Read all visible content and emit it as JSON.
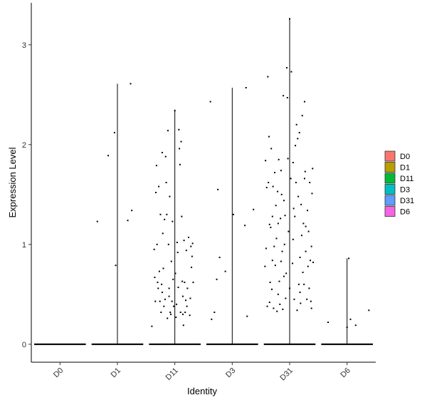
{
  "chart_data": {
    "type": "violin-jitter",
    "title": "",
    "xlabel": "Identity",
    "ylabel": "Expression Level",
    "ylim": [
      -0.18,
      3.42
    ],
    "yticks": [
      0,
      1,
      2,
      3
    ],
    "categories": [
      "D0",
      "D1",
      "D11",
      "D3",
      "D31",
      "D6"
    ],
    "legend": {
      "position": "right",
      "entries": [
        {
          "label": "D0",
          "color": "#F8766D"
        },
        {
          "label": "D1",
          "color": "#B79F00"
        },
        {
          "label": "D11",
          "color": "#00BA38"
        },
        {
          "label": "D3",
          "color": "#00BFC4"
        },
        {
          "label": "D31",
          "color": "#619CFF"
        },
        {
          "label": "D6",
          "color": "#F564E3"
        }
      ]
    },
    "series": [
      {
        "category": "D0",
        "max": 0.0,
        "points": []
      },
      {
        "category": "D1",
        "max": 2.61,
        "points": [
          [
            -0.35,
            1.23
          ],
          [
            -0.16,
            1.89
          ],
          [
            -0.05,
            2.12
          ],
          [
            -0.03,
            0.79
          ],
          [
            0.18,
            1.24
          ],
          [
            0.23,
            2.61
          ],
          [
            0.25,
            1.34
          ]
        ]
      },
      {
        "category": "D11",
        "max": 2.35,
        "points": [
          [
            -0.4,
            0.18
          ],
          [
            -0.34,
            0.43
          ],
          [
            -0.33,
            1.52
          ],
          [
            -0.32,
            1.79
          ],
          [
            -0.31,
            1.0
          ],
          [
            -0.3,
            0.62
          ],
          [
            -0.29,
            0.56
          ],
          [
            -0.28,
            1.58
          ],
          [
            -0.26,
            0.43
          ],
          [
            -0.25,
            1.3
          ],
          [
            -0.24,
            0.32
          ],
          [
            -0.23,
            0.6
          ],
          [
            -0.22,
            1.92
          ],
          [
            -0.21,
            1.11
          ],
          [
            -0.2,
            0.76
          ],
          [
            -0.19,
            0.38
          ],
          [
            -0.18,
            1.25
          ],
          [
            -0.17,
            0.45
          ],
          [
            -0.16,
            1.88
          ],
          [
            -0.15,
            1.62
          ],
          [
            -0.14,
            1.3
          ],
          [
            -0.13,
            0.26
          ],
          [
            -0.12,
            2.14
          ],
          [
            -0.11,
            1.0
          ],
          [
            -0.1,
            0.56
          ],
          [
            -0.09,
            1.48
          ],
          [
            -0.08,
            0.32
          ],
          [
            -0.07,
            0.3
          ],
          [
            -0.05,
            0.43
          ],
          [
            -0.04,
            1.23
          ],
          [
            -0.03,
            0.65
          ],
          [
            -0.02,
            0.38
          ],
          [
            0.0,
            2.34
          ],
          [
            0.02,
            0.27
          ],
          [
            0.04,
            1.02
          ],
          [
            0.05,
            0.92
          ],
          [
            0.06,
            0.57
          ],
          [
            0.07,
            2.15
          ],
          [
            0.08,
            1.96
          ],
          [
            0.09,
            1.8
          ],
          [
            0.1,
            0.32
          ],
          [
            0.11,
            2.03
          ],
          [
            0.12,
            1.28
          ],
          [
            0.13,
            0.63
          ],
          [
            0.14,
            0.3
          ],
          [
            0.15,
            0.19
          ],
          [
            0.16,
            1.04
          ],
          [
            0.17,
            0.62
          ],
          [
            0.18,
            0.32
          ],
          [
            0.19,
            0.44
          ],
          [
            0.2,
            0.94
          ],
          [
            0.22,
            0.56
          ],
          [
            0.24,
            1.07
          ],
          [
            0.26,
            0.29
          ],
          [
            0.28,
            0.98
          ],
          [
            0.3,
            0.88
          ],
          [
            0.32,
            0.62
          ],
          [
            -0.36,
            0.95
          ],
          [
            -0.27,
            0.73
          ],
          [
            -0.06,
            0.83
          ],
          [
            0.01,
            0.71
          ],
          [
            0.21,
            0.38
          ],
          [
            0.27,
            0.46
          ],
          [
            -0.35,
            0.67
          ],
          [
            -0.22,
            0.52
          ],
          [
            -0.1,
            0.48
          ],
          [
            0.03,
            0.4
          ],
          [
            0.14,
            0.48
          ],
          [
            0.29,
            0.77
          ],
          [
            0.31,
            1.01
          ]
        ]
      },
      {
        "category": "D3",
        "max": 2.57,
        "points": [
          [
            -0.38,
            2.43
          ],
          [
            -0.36,
            0.25
          ],
          [
            -0.31,
            0.32
          ],
          [
            -0.27,
            0.65
          ],
          [
            -0.25,
            1.55
          ],
          [
            -0.22,
            0.87
          ],
          [
            -0.12,
            0.73
          ],
          [
            0.02,
            1.3
          ],
          [
            0.22,
            1.19
          ],
          [
            0.24,
            2.57
          ],
          [
            0.26,
            0.28
          ],
          [
            0.37,
            1.35
          ]
        ]
      },
      {
        "category": "D31",
        "max": 3.26,
        "points": [
          [
            -0.43,
            0.78
          ],
          [
            -0.42,
            1.84
          ],
          [
            -0.41,
            0.96
          ],
          [
            -0.4,
            1.57
          ],
          [
            -0.38,
            2.68
          ],
          [
            -0.37,
            1.62
          ],
          [
            -0.36,
            2.08
          ],
          [
            -0.35,
            0.42
          ],
          [
            -0.34,
            0.62
          ],
          [
            -0.33,
            1.17
          ],
          [
            -0.32,
            1.96
          ],
          [
            -0.31,
            0.55
          ],
          [
            -0.3,
            1.28
          ],
          [
            -0.29,
            1.58
          ],
          [
            -0.28,
            0.36
          ],
          [
            -0.27,
            0.98
          ],
          [
            -0.26,
            1.72
          ],
          [
            -0.25,
            0.79
          ],
          [
            -0.24,
            1.39
          ],
          [
            -0.23,
            1.06
          ],
          [
            -0.22,
            0.33
          ],
          [
            -0.21,
            1.53
          ],
          [
            -0.2,
            1.21
          ],
          [
            -0.19,
            1.85
          ],
          [
            -0.18,
            0.63
          ],
          [
            -0.17,
            0.4
          ],
          [
            -0.16,
            1.26
          ],
          [
            -0.15,
            0.83
          ],
          [
            -0.14,
            1.5
          ],
          [
            -0.13,
            0.93
          ],
          [
            -0.12,
            0.35
          ],
          [
            -0.11,
            2.49
          ],
          [
            -0.1,
            1.44
          ],
          [
            -0.09,
            1.0
          ],
          [
            -0.08,
            1.29
          ],
          [
            -0.07,
            0.46
          ],
          [
            -0.06,
            0.71
          ],
          [
            -0.05,
            2.77
          ],
          [
            -0.04,
            2.47
          ],
          [
            -0.03,
            1.86
          ],
          [
            -0.02,
            1.13
          ],
          [
            0.0,
            3.26
          ],
          [
            0.02,
            1.66
          ],
          [
            0.03,
            2.73
          ],
          [
            0.05,
            0.81
          ],
          [
            0.06,
            1.05
          ],
          [
            0.07,
            1.36
          ],
          [
            0.08,
            0.45
          ],
          [
            0.1,
            1.99
          ],
          [
            0.11,
            1.62
          ],
          [
            0.12,
            2.2
          ],
          [
            0.13,
            0.34
          ],
          [
            0.14,
            2.06
          ],
          [
            0.15,
            1.48
          ],
          [
            0.16,
            0.6
          ],
          [
            0.17,
            2.12
          ],
          [
            0.18,
            0.87
          ],
          [
            0.19,
            0.41
          ],
          [
            0.2,
            1.4
          ],
          [
            0.21,
            1.09
          ],
          [
            0.22,
            2.29
          ],
          [
            0.23,
            0.72
          ],
          [
            0.24,
            1.21
          ],
          [
            0.25,
            0.6
          ],
          [
            0.26,
            2.43
          ],
          [
            0.27,
            1.73
          ],
          [
            0.28,
            0.93
          ],
          [
            0.3,
            0.45
          ],
          [
            0.31,
            1.34
          ],
          [
            0.32,
            0.78
          ],
          [
            0.33,
            1.13
          ],
          [
            0.34,
            0.56
          ],
          [
            0.35,
            1.62
          ],
          [
            0.36,
            0.84
          ],
          [
            0.37,
            0.43
          ],
          [
            0.38,
            0.98
          ],
          [
            0.39,
            1.51
          ],
          [
            0.4,
            1.76
          ],
          [
            0.41,
            0.82
          ],
          [
            -0.39,
            0.38
          ],
          [
            -0.3,
            0.84
          ],
          [
            -0.2,
            0.5
          ],
          [
            -0.1,
            0.68
          ],
          [
            0.0,
            0.56
          ],
          [
            0.09,
            1.28
          ],
          [
            0.18,
            0.52
          ],
          [
            0.28,
            1.18
          ],
          [
            0.38,
            0.36
          ],
          [
            -0.35,
            1.2
          ],
          [
            -0.15,
            1.74
          ],
          [
            0.06,
            1.82
          ],
          [
            0.26,
            1.66
          ]
        ]
      },
      {
        "category": "D6",
        "max": 0.86,
        "points": [
          [
            -0.33,
            0.22
          ],
          [
            0.0,
            0.17
          ],
          [
            0.03,
            0.86
          ],
          [
            0.06,
            0.25
          ],
          [
            0.15,
            0.19
          ],
          [
            0.38,
            0.34
          ]
        ]
      }
    ]
  }
}
